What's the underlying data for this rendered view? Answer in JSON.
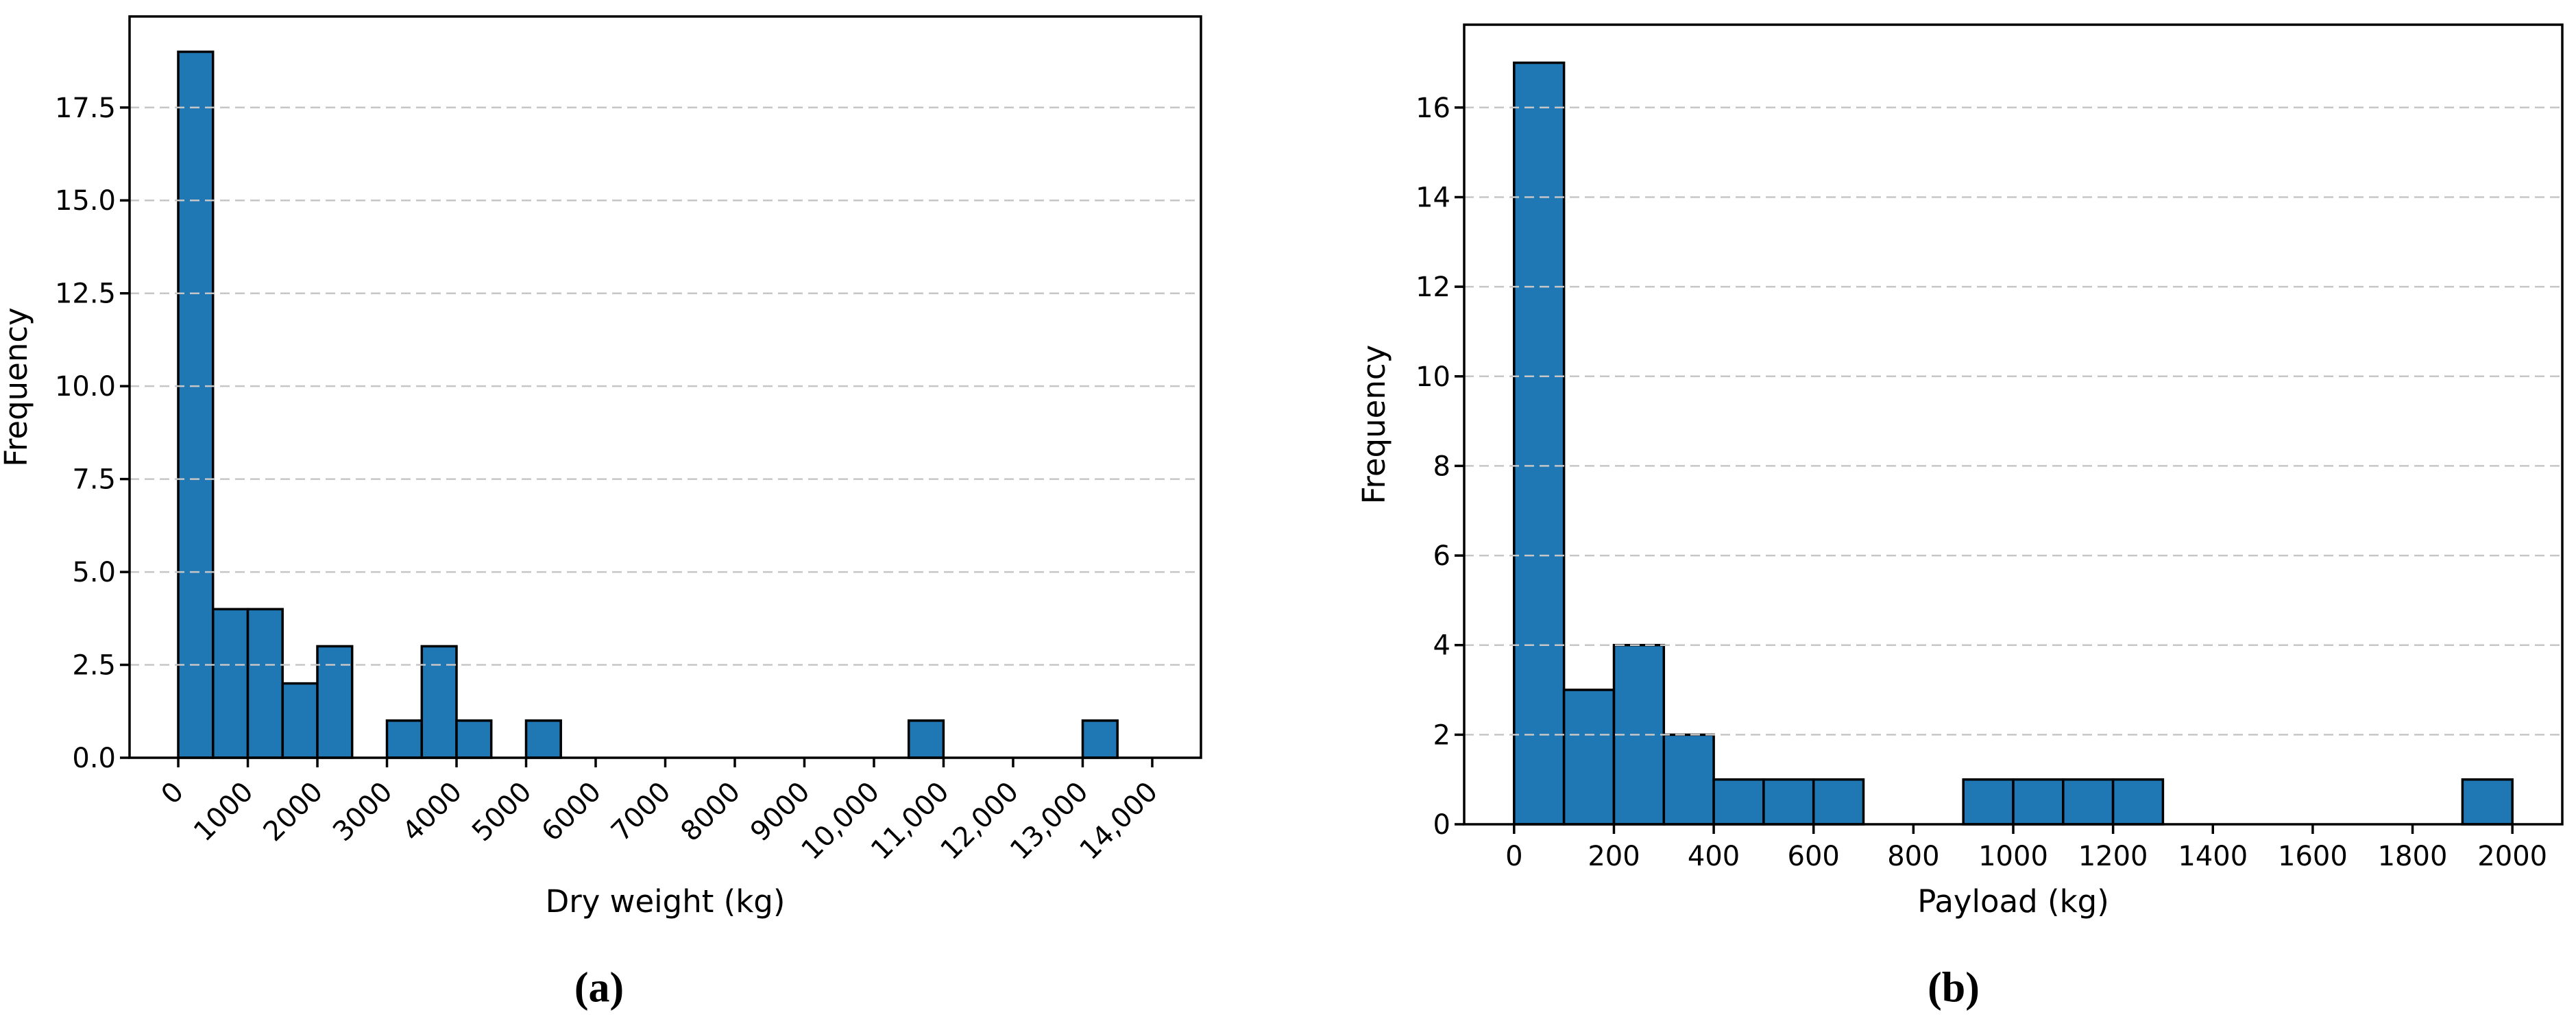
{
  "figure": {
    "background": "#ffffff",
    "text_color": "#000000",
    "grid_color": "#c6c6c6"
  },
  "chart_data": [
    {
      "type": "bar",
      "subtype": "histogram",
      "panel_label": "(a)",
      "title": "",
      "xlabel": "Dry weight (kg)",
      "ylabel": "Frequency",
      "bar_color": "#1f77b4",
      "bar_edge_color": "#000000",
      "grid": {
        "axis": "y",
        "style": "dashed",
        "on": true
      },
      "bin_start": 0,
      "bin_width": 500,
      "counts": [
        19,
        4,
        4,
        2,
        3,
        0,
        1,
        3,
        1,
        0,
        1,
        0,
        0,
        0,
        0,
        0,
        0,
        0,
        0,
        0,
        0,
        1,
        0,
        0,
        0,
        0,
        1
      ],
      "xlim": [
        -700,
        14700
      ],
      "ylim": [
        0,
        19.95
      ],
      "xticks": {
        "values": [
          0,
          1000,
          2000,
          3000,
          4000,
          5000,
          6000,
          7000,
          8000,
          9000,
          10000,
          11000,
          12000,
          13000,
          14000
        ],
        "labels": [
          "0",
          "1000",
          "2000",
          "3000",
          "4000",
          "5000",
          "6000",
          "7000",
          "8000",
          "9000",
          "10,000",
          "11,000",
          "12,000",
          "13,000",
          "14,000"
        ],
        "rotation": 45
      },
      "yticks": {
        "values": [
          0,
          2.5,
          5,
          7.5,
          10,
          12.5,
          15,
          17.5
        ],
        "labels": [
          "0.0",
          "2.5",
          "5.0",
          "7.5",
          "10.0",
          "12.5",
          "15.0",
          "17.5"
        ]
      }
    },
    {
      "type": "bar",
      "subtype": "histogram",
      "panel_label": "(b)",
      "title": "",
      "xlabel": "Payload (kg)",
      "ylabel": "Frequency",
      "bar_color": "#1f77b4",
      "bar_edge_color": "#000000",
      "grid": {
        "axis": "y",
        "style": "dashed",
        "on": true
      },
      "bin_start": 0,
      "bin_width": 100,
      "counts": [
        17,
        3,
        4,
        2,
        1,
        1,
        1,
        0,
        0,
        1,
        1,
        1,
        1,
        0,
        0,
        0,
        0,
        0,
        0,
        1
      ],
      "xlim": [
        -100,
        2100
      ],
      "ylim": [
        0,
        17.85
      ],
      "xticks": {
        "values": [
          0,
          200,
          400,
          600,
          800,
          1000,
          1200,
          1400,
          1600,
          1800,
          2000
        ],
        "labels": [
          "0",
          "200",
          "400",
          "600",
          "800",
          "1000",
          "1200",
          "1400",
          "1600",
          "1800",
          "2000"
        ],
        "rotation": 0
      },
      "yticks": {
        "values": [
          0,
          2,
          4,
          6,
          8,
          10,
          12,
          14,
          16
        ],
        "labels": [
          "0",
          "2",
          "4",
          "6",
          "8",
          "10",
          "12",
          "14",
          "16"
        ]
      }
    }
  ]
}
